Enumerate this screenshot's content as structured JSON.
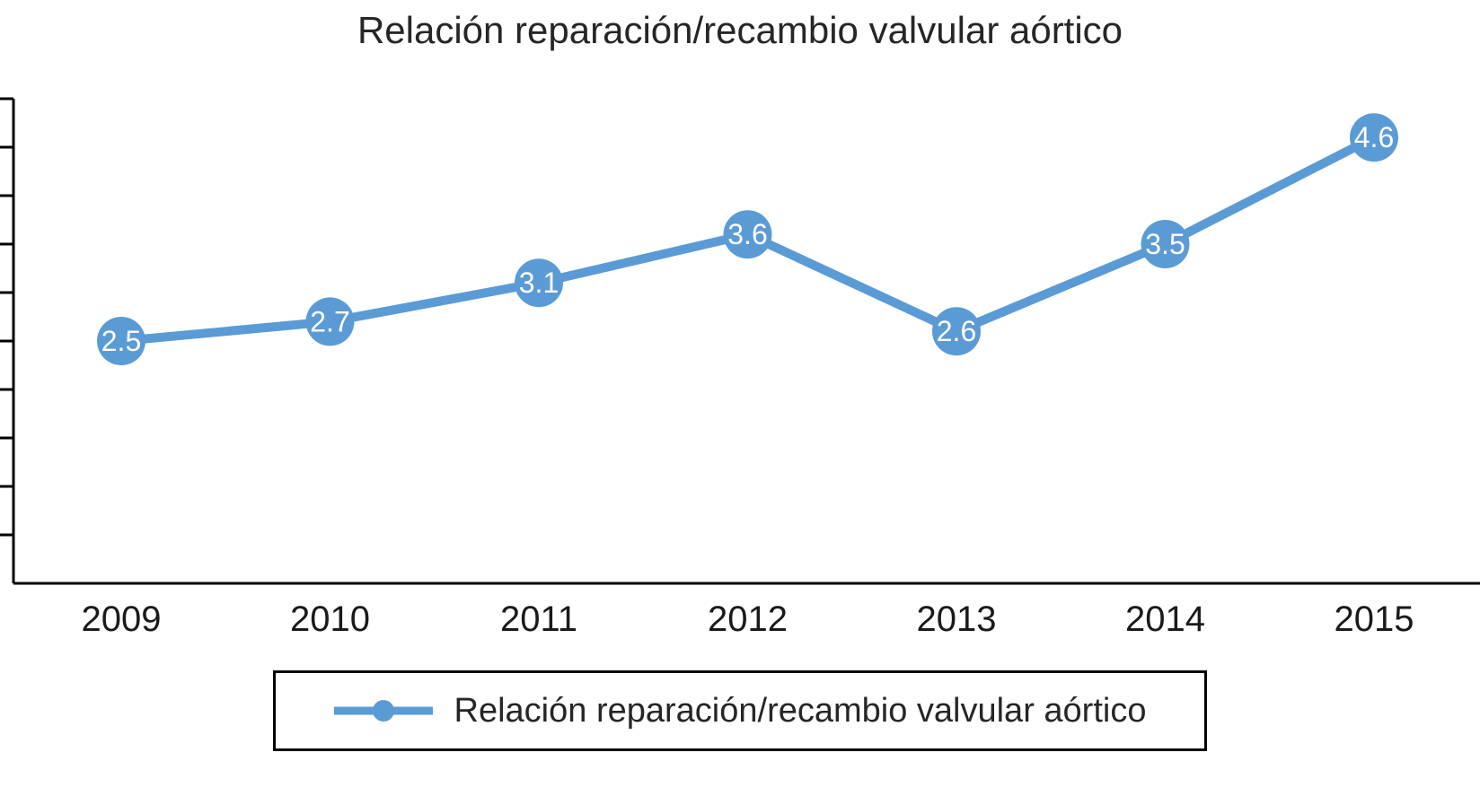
{
  "title": "Relación reparación/recambio valvular aórtico",
  "legend": {
    "label": "Relación reparación/recambio valvular aórtico"
  },
  "chart_data": {
    "type": "line",
    "title": "Relación reparación/recambio valvular aórtico",
    "x": [
      "2009",
      "2010",
      "2011",
      "2012",
      "2013",
      "2014",
      "2015"
    ],
    "series": [
      {
        "name": "Relación reparación/recambio valvular aórtico",
        "values": [
          2.5,
          2.7,
          3.1,
          3.6,
          2.6,
          3.5,
          4.6
        ],
        "labels": [
          "2.5",
          "2.7",
          "3.1",
          "3.6",
          "2.6",
          "3.5",
          "4.6"
        ]
      }
    ],
    "xlabel": "",
    "ylabel": "",
    "ylim": [
      0,
      5
    ],
    "y_tick_step": 0.5,
    "y_tick_labels_visible": false,
    "grid": false,
    "legend_position": "bottom",
    "line_color": "#5B9BD5",
    "marker_color": "#5B9BD5",
    "data_label_color": "#FFFFFF",
    "axis_color": "#000000",
    "tick_label_color": "#1a1a1a"
  }
}
